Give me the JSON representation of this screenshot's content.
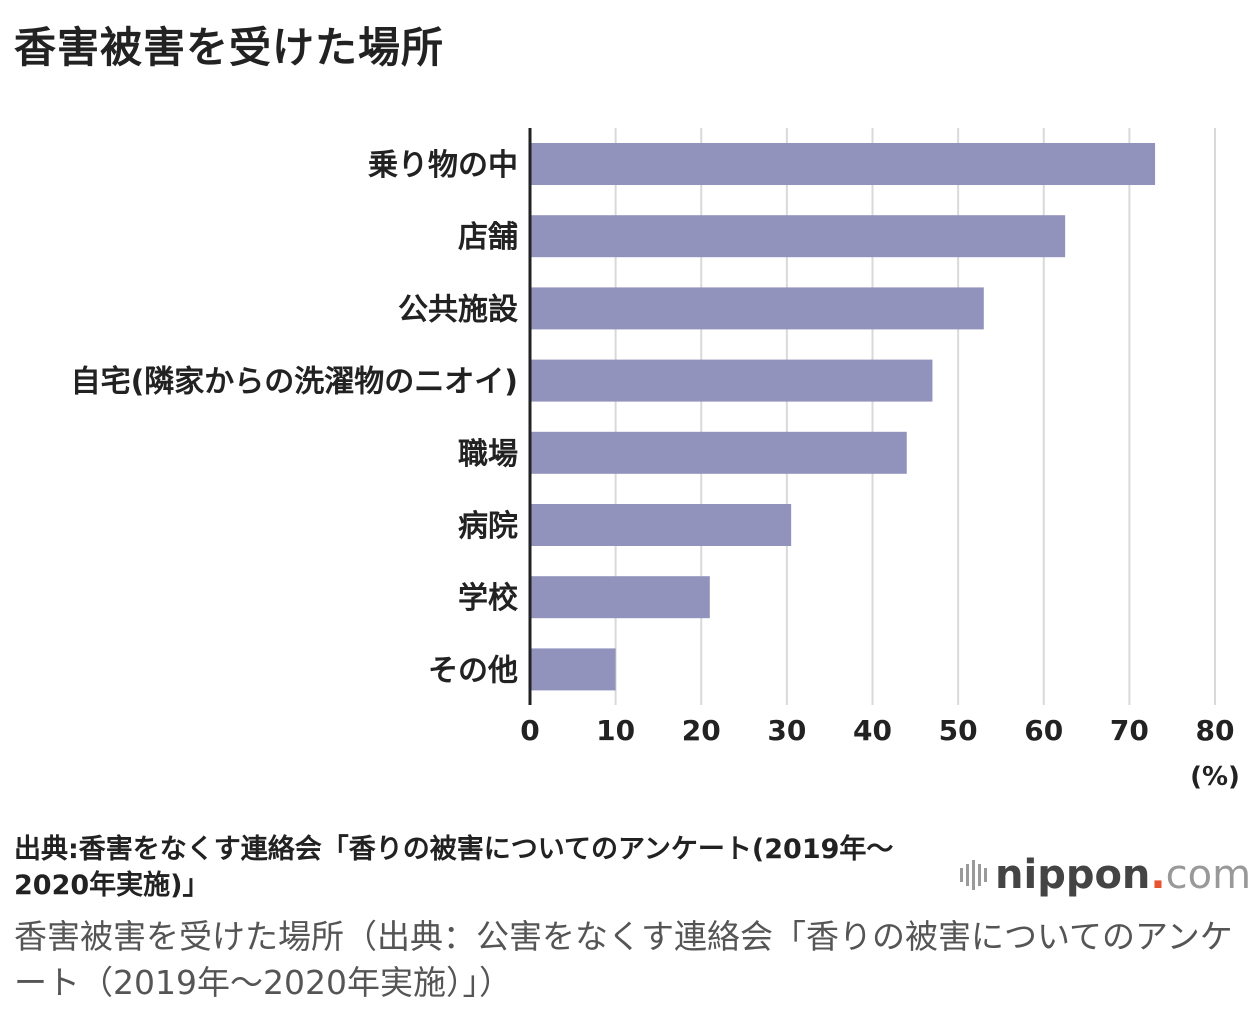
{
  "title": "香害被害を受けた場所",
  "chart_data": {
    "type": "bar",
    "orientation": "horizontal",
    "categories": [
      "乗り物の中",
      "店舗",
      "公共施設",
      "自宅(隣家からの洗濯物のニオイ)",
      "職場",
      "病院",
      "学校",
      "その他"
    ],
    "values": [
      73,
      62.5,
      53,
      47,
      44,
      30.5,
      21,
      10
    ],
    "xlim": [
      0,
      80
    ],
    "xticks": [
      "0",
      "10",
      "20",
      "30",
      "40",
      "50",
      "60",
      "70",
      "80"
    ],
    "unit": "(%)",
    "grid": true,
    "bar_color": "#9293bd",
    "grid_color": "#d9d9d9",
    "axis_color": "#222222"
  },
  "source_text": "出典:香害をなくす連絡会「香りの被害についてのアンケート(2019年〜2020年実施)」",
  "logo": {
    "name": "nippon",
    "dot": ".",
    "tld": "com",
    "dot_color": "#e8542f",
    "icon": "sound-bars-icon"
  },
  "caption": "香害被害を受けた場所（出典：公害をなくす連絡会「香りの被害についてのアンケート（2019年〜2020年実施）」）"
}
